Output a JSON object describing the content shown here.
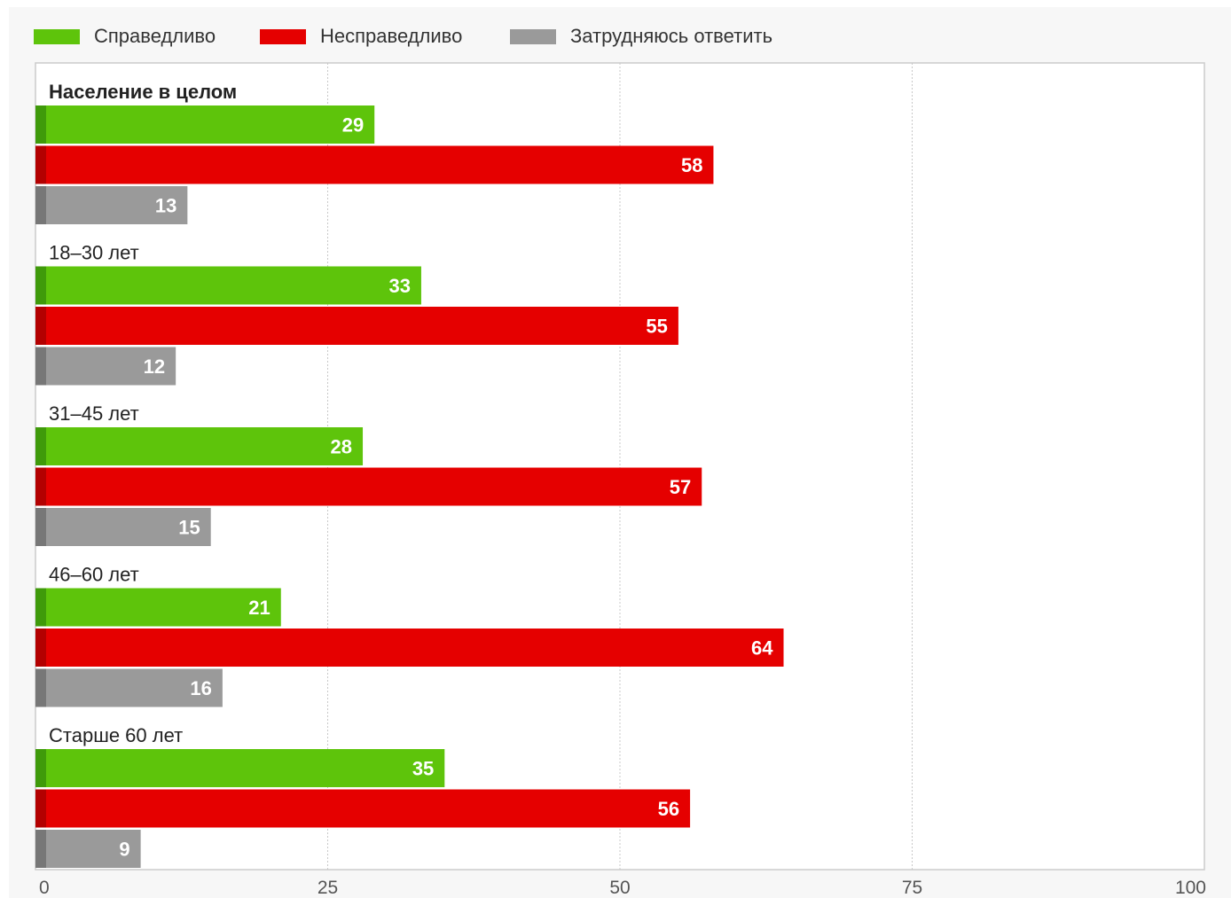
{
  "colors": {
    "fair": "#5ec40b",
    "fair_dark": "#3f9a0a",
    "unfair": "#e50000",
    "unfair_dark": "#b30000",
    "unsure": "#9a9a9a",
    "unsure_dark": "#777777",
    "grid": "#c8c8c8",
    "frame": "#cccccc"
  },
  "legend": [
    {
      "label": "Справедливо",
      "color": "#5ec40b"
    },
    {
      "label": "Несправедливо",
      "color": "#e50000"
    },
    {
      "label": "Затрудняюсь ответить",
      "color": "#9a9a9a"
    }
  ],
  "chart_data": {
    "type": "bar",
    "orientation": "horizontal",
    "categories": [
      "Население в целом",
      "18–30 лет",
      "31–45 лет",
      "46–60 лет",
      "Старше 60 лет"
    ],
    "series": [
      {
        "name": "Справедливо",
        "values": [
          29,
          33,
          28,
          21,
          35
        ]
      },
      {
        "name": "Несправедливо",
        "values": [
          58,
          55,
          57,
          64,
          56
        ]
      },
      {
        "name": "Затрудняюсь ответить",
        "values": [
          13,
          12,
          15,
          16,
          9
        ]
      }
    ],
    "xlim": [
      0,
      100
    ],
    "xticks": [
      0,
      25,
      50,
      75,
      100
    ],
    "grid": true,
    "legend_position": "top-left",
    "title": "",
    "xlabel": "",
    "ylabel": ""
  }
}
